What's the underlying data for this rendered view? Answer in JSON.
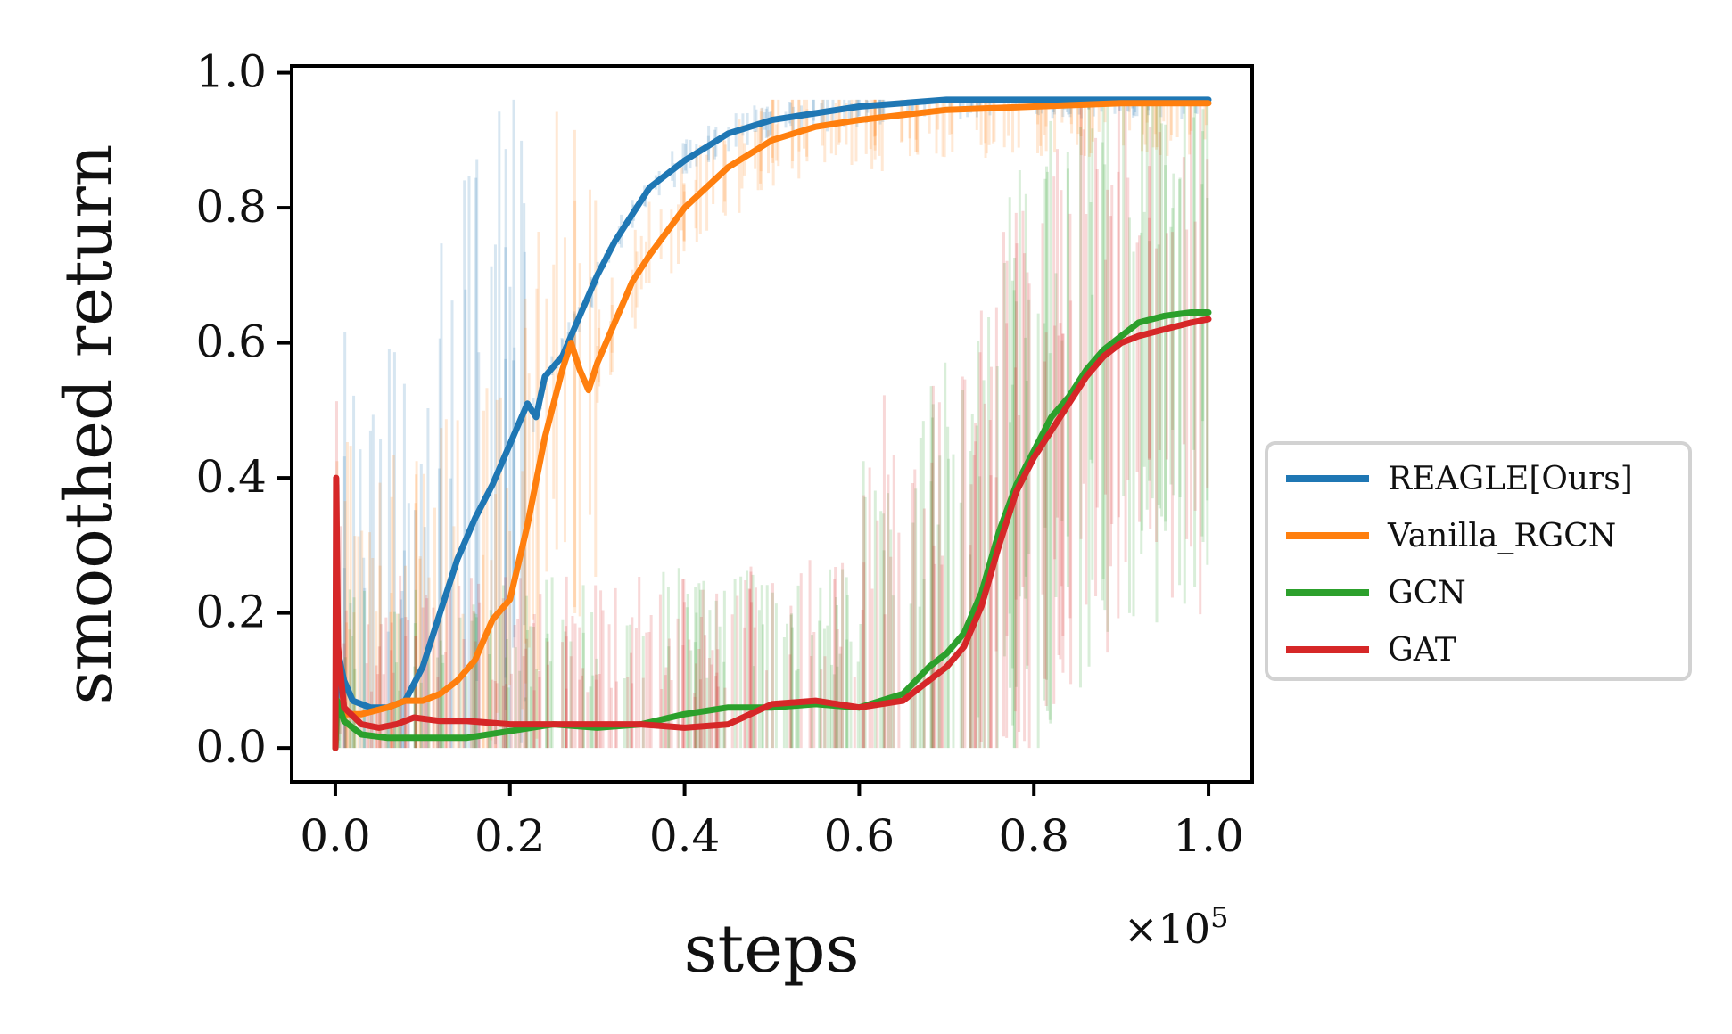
{
  "chart_data": {
    "type": "line",
    "title": "",
    "xlabel": "steps",
    "ylabel": "smoothed return",
    "x_offset_label": "×10",
    "x_offset_exponent": "5",
    "xlim": [
      -0.05,
      1.05
    ],
    "ylim": [
      -0.05,
      1.01
    ],
    "x_ticks": [
      0.0,
      0.2,
      0.4,
      0.6,
      0.8,
      1.0
    ],
    "x_tick_labels": [
      "0.0",
      "0.2",
      "0.4",
      "0.6",
      "0.8",
      "1.0"
    ],
    "y_ticks": [
      0.0,
      0.2,
      0.4,
      0.6,
      0.8,
      1.0
    ],
    "y_tick_labels": [
      "0.0",
      "0.2",
      "0.4",
      "0.6",
      "0.8",
      "1.0"
    ],
    "grid": false,
    "legend_position": "right-outside",
    "series": [
      {
        "name": "REAGLE[Ours]",
        "color": "#1f77b4",
        "points": [
          [
            0.0,
            0.0
          ],
          [
            0.002,
            0.13
          ],
          [
            0.005,
            0.13
          ],
          [
            0.01,
            0.1
          ],
          [
            0.02,
            0.07
          ],
          [
            0.04,
            0.06
          ],
          [
            0.06,
            0.06
          ],
          [
            0.08,
            0.07
          ],
          [
            0.1,
            0.12
          ],
          [
            0.12,
            0.2
          ],
          [
            0.14,
            0.28
          ],
          [
            0.16,
            0.34
          ],
          [
            0.18,
            0.39
          ],
          [
            0.2,
            0.45
          ],
          [
            0.22,
            0.51
          ],
          [
            0.23,
            0.49
          ],
          [
            0.24,
            0.55
          ],
          [
            0.26,
            0.58
          ],
          [
            0.28,
            0.64
          ],
          [
            0.3,
            0.7
          ],
          [
            0.32,
            0.75
          ],
          [
            0.34,
            0.79
          ],
          [
            0.36,
            0.83
          ],
          [
            0.4,
            0.87
          ],
          [
            0.45,
            0.91
          ],
          [
            0.5,
            0.93
          ],
          [
            0.55,
            0.94
          ],
          [
            0.6,
            0.95
          ],
          [
            0.7,
            0.96
          ],
          [
            0.8,
            0.96
          ],
          [
            0.9,
            0.96
          ],
          [
            1.0,
            0.96
          ]
        ]
      },
      {
        "name": "Vanilla_RGCN",
        "color": "#ff7f0e",
        "points": [
          [
            0.0,
            0.0
          ],
          [
            0.002,
            0.07
          ],
          [
            0.01,
            0.05
          ],
          [
            0.03,
            0.05
          ],
          [
            0.06,
            0.06
          ],
          [
            0.08,
            0.07
          ],
          [
            0.1,
            0.07
          ],
          [
            0.12,
            0.08
          ],
          [
            0.14,
            0.1
          ],
          [
            0.16,
            0.13
          ],
          [
            0.18,
            0.19
          ],
          [
            0.2,
            0.22
          ],
          [
            0.22,
            0.33
          ],
          [
            0.24,
            0.46
          ],
          [
            0.26,
            0.56
          ],
          [
            0.27,
            0.6
          ],
          [
            0.28,
            0.56
          ],
          [
            0.29,
            0.53
          ],
          [
            0.3,
            0.57
          ],
          [
            0.32,
            0.63
          ],
          [
            0.34,
            0.69
          ],
          [
            0.36,
            0.73
          ],
          [
            0.4,
            0.8
          ],
          [
            0.45,
            0.86
          ],
          [
            0.5,
            0.9
          ],
          [
            0.55,
            0.92
          ],
          [
            0.6,
            0.93
          ],
          [
            0.7,
            0.945
          ],
          [
            0.8,
            0.95
          ],
          [
            0.9,
            0.955
          ],
          [
            0.95,
            0.955
          ],
          [
            1.0,
            0.955
          ]
        ]
      },
      {
        "name": "GCN",
        "color": "#2ca02c",
        "points": [
          [
            0.0,
            0.0
          ],
          [
            0.002,
            0.07
          ],
          [
            0.01,
            0.04
          ],
          [
            0.03,
            0.02
          ],
          [
            0.06,
            0.015
          ],
          [
            0.1,
            0.015
          ],
          [
            0.15,
            0.015
          ],
          [
            0.2,
            0.025
          ],
          [
            0.25,
            0.035
          ],
          [
            0.3,
            0.03
          ],
          [
            0.35,
            0.035
          ],
          [
            0.4,
            0.05
          ],
          [
            0.45,
            0.06
          ],
          [
            0.5,
            0.06
          ],
          [
            0.55,
            0.065
          ],
          [
            0.6,
            0.06
          ],
          [
            0.65,
            0.08
          ],
          [
            0.68,
            0.12
          ],
          [
            0.7,
            0.14
          ],
          [
            0.72,
            0.17
          ],
          [
            0.74,
            0.23
          ],
          [
            0.76,
            0.32
          ],
          [
            0.78,
            0.39
          ],
          [
            0.8,
            0.44
          ],
          [
            0.82,
            0.49
          ],
          [
            0.84,
            0.52
          ],
          [
            0.86,
            0.56
          ],
          [
            0.88,
            0.59
          ],
          [
            0.9,
            0.61
          ],
          [
            0.92,
            0.63
          ],
          [
            0.95,
            0.64
          ],
          [
            0.98,
            0.645
          ],
          [
            1.0,
            0.645
          ]
        ]
      },
      {
        "name": "GAT",
        "color": "#d62728",
        "points": [
          [
            0.0,
            0.0
          ],
          [
            0.001,
            0.4
          ],
          [
            0.003,
            0.15
          ],
          [
            0.01,
            0.06
          ],
          [
            0.03,
            0.035
          ],
          [
            0.05,
            0.03
          ],
          [
            0.07,
            0.035
          ],
          [
            0.09,
            0.045
          ],
          [
            0.12,
            0.04
          ],
          [
            0.15,
            0.04
          ],
          [
            0.2,
            0.035
          ],
          [
            0.25,
            0.035
          ],
          [
            0.3,
            0.035
          ],
          [
            0.35,
            0.035
          ],
          [
            0.4,
            0.03
          ],
          [
            0.45,
            0.035
          ],
          [
            0.5,
            0.065
          ],
          [
            0.55,
            0.07
          ],
          [
            0.6,
            0.06
          ],
          [
            0.65,
            0.07
          ],
          [
            0.68,
            0.1
          ],
          [
            0.7,
            0.12
          ],
          [
            0.72,
            0.15
          ],
          [
            0.74,
            0.21
          ],
          [
            0.76,
            0.3
          ],
          [
            0.78,
            0.38
          ],
          [
            0.8,
            0.43
          ],
          [
            0.82,
            0.47
          ],
          [
            0.84,
            0.51
          ],
          [
            0.86,
            0.55
          ],
          [
            0.88,
            0.58
          ],
          [
            0.9,
            0.6
          ],
          [
            0.92,
            0.61
          ],
          [
            0.95,
            0.62
          ],
          [
            0.98,
            0.63
          ],
          [
            1.0,
            0.635
          ]
        ]
      }
    ]
  }
}
